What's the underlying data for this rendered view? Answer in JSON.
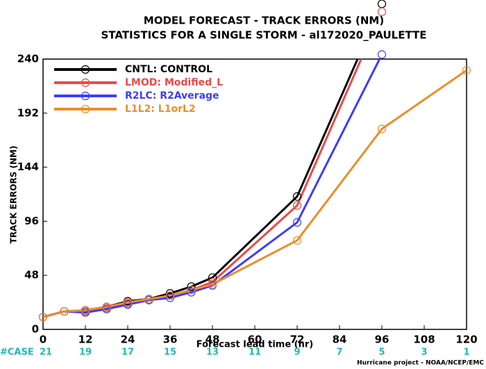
{
  "chart_data": {
    "type": "line",
    "title": "MODEL FORECAST - TRACK ERRORS (NM)",
    "subtitle": "STATISTICS FOR A SINGLE STORM - al172020_PAULETTE",
    "x_label": "Forecast lead time (hr)",
    "y_label": "TRACK ERRORS (NM)",
    "footer": "Hurricane project - NOAA/NCEP/EMC",
    "x": [
      0,
      6,
      12,
      18,
      24,
      30,
      36,
      42,
      48,
      72,
      96,
      120
    ],
    "series": [
      {
        "name": "CNTL: CONTROL",
        "color": "#000000",
        "values": [
          11,
          16,
          17,
          20,
          25,
          27,
          32,
          38,
          46,
          118,
          289,
          null
        ]
      },
      {
        "name": "LMOD: Modified_L",
        "color": "#f04848",
        "values": [
          11,
          16,
          16,
          19,
          23,
          26,
          30,
          35,
          42,
          110,
          282,
          null
        ]
      },
      {
        "name": "R2LC: R2Average",
        "color": "#3c3cff",
        "values": [
          11,
          16,
          15,
          18,
          22,
          26,
          28,
          33,
          39,
          95,
          244,
          null
        ]
      },
      {
        "name": "L1L2: L1orL2",
        "color": "#f08c28",
        "values": [
          11,
          16,
          17,
          20,
          24,
          27,
          30,
          35,
          40,
          79,
          178,
          230
        ]
      }
    ],
    "xlim": [
      0,
      120
    ],
    "xticks": [
      0,
      12,
      24,
      36,
      48,
      60,
      72,
      84,
      96,
      108,
      120
    ],
    "ylim": [
      0,
      240
    ],
    "yticks": [
      0,
      48,
      96,
      144,
      192,
      240
    ],
    "case_label": "#CASE",
    "case_counts": [
      21,
      19,
      17,
      15,
      13,
      11,
      9,
      7,
      5,
      3,
      1
    ],
    "case_color": "#20b8b8",
    "legend": "upper left"
  }
}
